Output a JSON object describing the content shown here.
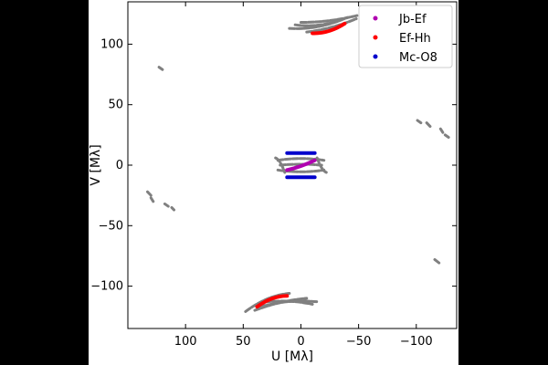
{
  "chart_data": {
    "type": "scatter",
    "title": "",
    "xlabel": "U [Mλ]",
    "ylabel": "V [Mλ]",
    "xlim": [
      150,
      -135
    ],
    "ylim": [
      -135,
      135
    ],
    "x_inverted": true,
    "xticks": [
      100,
      50,
      0,
      -50,
      -100
    ],
    "yticks": [
      100,
      50,
      0,
      -50,
      -100
    ],
    "grid": false,
    "legend_position": "top-right",
    "colors": {
      "background_gray": "#808080",
      "Jb-Ef": "#b000b0",
      "Ef-Hh": "#ff0000",
      "Mc-O8": "#0000cc"
    },
    "series": [
      {
        "name": "Jb-Ef",
        "color": "#b000b0",
        "tracks": [
          {
            "u_from": 12,
            "u_to": -12,
            "v_from": -4,
            "v_to": 4,
            "curve": -1
          }
        ]
      },
      {
        "name": "Ef-Hh",
        "color": "#ff0000",
        "tracks": [
          {
            "u_from": -10,
            "u_to": -38,
            "v_from": 109,
            "v_to": 117,
            "curve": -3
          },
          {
            "u_from": 38,
            "u_to": 12,
            "v_from": -117,
            "v_to": -108,
            "curve": 3
          }
        ]
      },
      {
        "name": "Mc-O8",
        "color": "#0000cc",
        "tracks": [
          {
            "u_from": 12,
            "u_to": -12,
            "v_from": 10,
            "v_to": 10,
            "curve": 0
          },
          {
            "u_from": 12,
            "u_to": -12,
            "v_from": -10,
            "v_to": -10,
            "curve": 0
          }
        ]
      }
    ],
    "background_tracks": [
      {
        "u_from": 10,
        "u_to": -40,
        "v_from": 113,
        "v_to": 122,
        "curve": -4
      },
      {
        "u_from": 5,
        "u_to": -35,
        "v_from": 116,
        "v_to": 120,
        "curve": -3
      },
      {
        "u_from": -5,
        "u_to": -48,
        "v_from": 110,
        "v_to": 121,
        "curve": -2
      },
      {
        "u_from": 0,
        "u_to": -50,
        "v_from": 118,
        "v_to": 124,
        "curve": -2
      },
      {
        "u_from": 48,
        "u_to": 10,
        "v_from": -121,
        "v_to": -106,
        "curve": 4
      },
      {
        "u_from": 35,
        "u_to": -15,
        "v_from": -117,
        "v_to": -113,
        "curve": 3
      },
      {
        "u_from": 40,
        "u_to": -5,
        "v_from": -120,
        "v_to": -110,
        "curve": 2
      },
      {
        "u_from": 30,
        "u_to": -10,
        "v_from": -113,
        "v_to": -115,
        "curve": 2
      },
      {
        "u_from": 20,
        "u_to": -20,
        "v_from": 4,
        "v_to": 4,
        "curve": 2
      },
      {
        "u_from": 20,
        "u_to": -20,
        "v_from": -4,
        "v_to": -4,
        "curve": -2
      },
      {
        "u_from": 22,
        "u_to": 14,
        "v_from": 6,
        "v_to": -6,
        "curve": 3
      },
      {
        "u_from": -14,
        "u_to": -22,
        "v_from": 6,
        "v_to": -6,
        "curve": -3
      },
      {
        "u_from": 18,
        "u_to": -18,
        "v_from": 0,
        "v_to": 0,
        "curve": 1
      },
      {
        "u_from": 123,
        "u_to": 120,
        "v_from": 81,
        "v_to": 79,
        "curve": 0
      },
      {
        "u_from": 133,
        "u_to": 130,
        "v_from": -22,
        "v_to": -25,
        "curve": 0
      },
      {
        "u_from": 130,
        "u_to": 128,
        "v_from": -27,
        "v_to": -30,
        "curve": 0
      },
      {
        "u_from": 118,
        "u_to": 115,
        "v_from": -32,
        "v_to": -34,
        "curve": 0
      },
      {
        "u_from": 112,
        "u_to": 110,
        "v_from": -35,
        "v_to": -37,
        "curve": 0
      },
      {
        "u_from": -101,
        "u_to": -104,
        "v_from": 37,
        "v_to": 35,
        "curve": 0
      },
      {
        "u_from": -109,
        "u_to": -112,
        "v_from": 35,
        "v_to": 32,
        "curve": 0
      },
      {
        "u_from": -121,
        "u_to": -123,
        "v_from": 30,
        "v_to": 27,
        "curve": 0
      },
      {
        "u_from": -125,
        "u_to": -128,
        "v_from": 25,
        "v_to": 23,
        "curve": 0
      },
      {
        "u_from": -116,
        "u_to": -120,
        "v_from": -78,
        "v_to": -81,
        "curve": 0
      }
    ]
  }
}
